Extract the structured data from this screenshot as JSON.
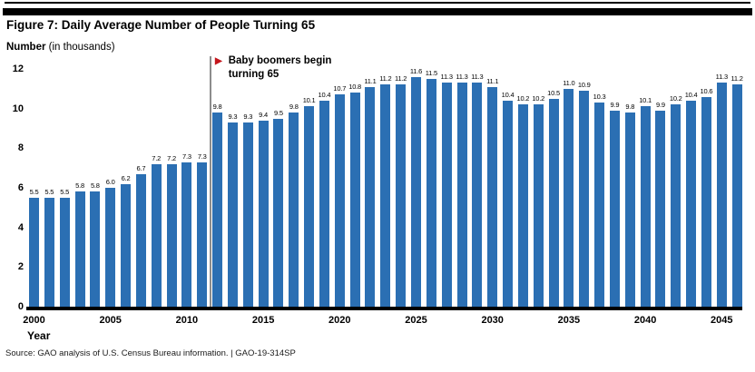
{
  "header": {
    "title": "Figure 7: Daily Average Number of People Turning 65"
  },
  "chart_data": {
    "type": "bar",
    "title": "Figure 7: Daily Average Number of People Turning 65",
    "y_axis_title_bold": "Number",
    "y_axis_title_rest": " (in thousands)",
    "x_axis_title": "Year",
    "x": [
      2000,
      2001,
      2002,
      2003,
      2004,
      2005,
      2006,
      2007,
      2008,
      2009,
      2010,
      2011,
      2012,
      2013,
      2014,
      2015,
      2016,
      2017,
      2018,
      2019,
      2020,
      2021,
      2022,
      2023,
      2024,
      2025,
      2026,
      2027,
      2028,
      2029,
      2030,
      2031,
      2032,
      2033,
      2034,
      2035,
      2036,
      2037,
      2038,
      2039,
      2040,
      2041,
      2042,
      2043,
      2044,
      2045,
      2046
    ],
    "values": [
      5.5,
      5.5,
      5.5,
      5.8,
      5.8,
      6.0,
      6.2,
      6.7,
      7.2,
      7.2,
      7.3,
      7.3,
      9.8,
      9.3,
      9.3,
      9.4,
      9.5,
      9.8,
      10.1,
      10.4,
      10.7,
      10.8,
      11.1,
      11.2,
      11.2,
      11.6,
      11.5,
      11.3,
      11.3,
      11.3,
      11.1,
      10.4,
      10.2,
      10.2,
      10.5,
      11.0,
      10.9,
      10.3,
      9.9,
      9.8,
      10.1,
      9.9,
      10.2,
      10.4,
      10.6,
      11.3,
      11.2
    ],
    "y_ticks": [
      0,
      2,
      4,
      6,
      8,
      10,
      12
    ],
    "x_ticks": [
      2000,
      2005,
      2010,
      2015,
      2020,
      2025,
      2030,
      2035,
      2040,
      2045
    ],
    "ylim": [
      0,
      12
    ],
    "grid": false,
    "legend": "none",
    "data_labels": true,
    "bar_color": "#2B6FB3",
    "annotation": {
      "marker": "▶",
      "marker_color": "#C4161C",
      "line1": "Baby boomers begin",
      "line2": "turning 65",
      "at_year": 2012
    }
  },
  "footer": {
    "source": "Source: GAO analysis of U.S. Census Bureau information.  |  GAO-19-314SP"
  }
}
